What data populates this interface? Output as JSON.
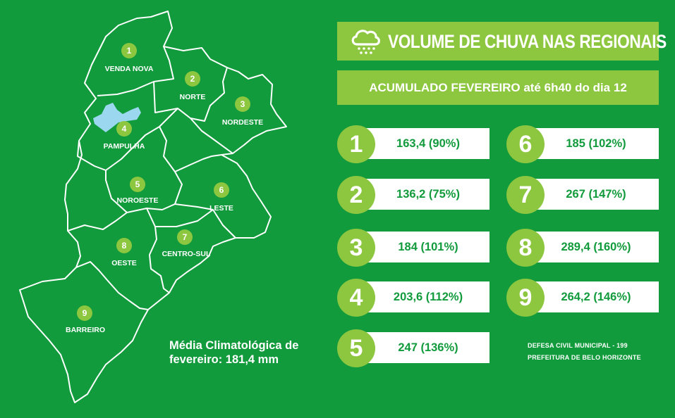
{
  "header": {
    "title": "VOLUME DE CHUVA NAS REGIONAIS",
    "subtitle": "ACUMULADO FEVEREIRO até 6h40 do dia 12",
    "icon": "rain-cloud-icon"
  },
  "colors": {
    "background": "#129b3c",
    "accent": "#8dc63f",
    "lake": "#9bd8f0"
  },
  "map": {
    "regions": [
      {
        "number": "1",
        "name": "VENDA NOVA"
      },
      {
        "number": "2",
        "name": "NORTE"
      },
      {
        "number": "3",
        "name": "NORDESTE"
      },
      {
        "number": "4",
        "name": "PAMPULHA"
      },
      {
        "number": "5",
        "name": "NOROESTE"
      },
      {
        "number": "6",
        "name": "LESTE"
      },
      {
        "number": "7",
        "name": "CENTRO-SUL"
      },
      {
        "number": "8",
        "name": "OESTE"
      },
      {
        "number": "9",
        "name": "BARREIRO"
      }
    ],
    "climatology_line1": "Média Climatológica de",
    "climatology_line2": "fevereiro: 181,4 mm"
  },
  "readings": [
    {
      "number": "1",
      "value": "163,4 (90%)"
    },
    {
      "number": "2",
      "value": "136,2 (75%)"
    },
    {
      "number": "3",
      "value": "184 (101%)"
    },
    {
      "number": "4",
      "value": "203,6 (112%)"
    },
    {
      "number": "5",
      "value": "247 (136%)"
    },
    {
      "number": "6",
      "value": "185 (102%)"
    },
    {
      "number": "7",
      "value": "267 (147%)"
    },
    {
      "number": "8",
      "value": "289,4 (160%)"
    },
    {
      "number": "9",
      "value": "264,2 (146%)"
    }
  ],
  "credits": {
    "line1": "DEFESA CIVIL MUNICIPAL -  199",
    "line2": "PREFEITURA DE BELO HORIZONTE"
  }
}
